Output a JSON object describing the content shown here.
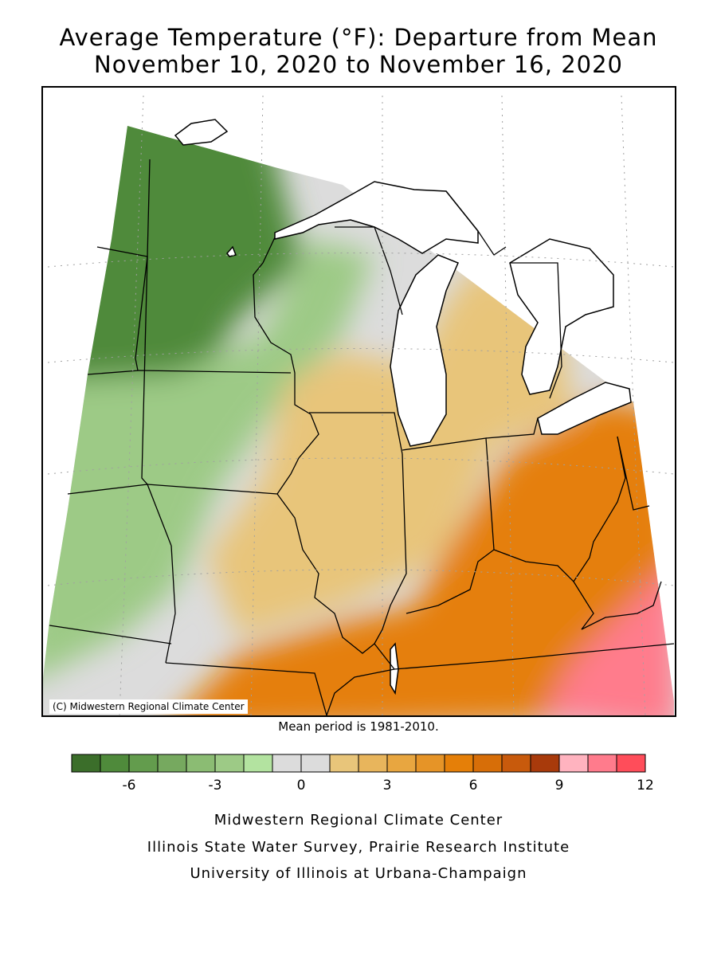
{
  "title": {
    "line1": "Average Temperature (°F): Departure from Mean",
    "line2": "November 10, 2020 to November 16, 2020"
  },
  "map": {
    "credit": "(C) Midwestern Regional Climate Center",
    "mean_period": "Mean period is 1981-2010.",
    "land_color": "#ffffff",
    "water_color": "#ffffff",
    "border_color": "#000000",
    "regions": [
      {
        "name": "northwest",
        "anomaly_range": [
          -8,
          -5
        ],
        "color": "#4f8a3b"
      },
      {
        "name": "west-central",
        "anomaly_range": [
          -4,
          -1
        ],
        "color": "#9dca86"
      },
      {
        "name": "central",
        "anomaly_range": [
          -1,
          1
        ],
        "color": "#dcdcdc"
      },
      {
        "name": "east-central",
        "anomaly_range": [
          1,
          4
        ],
        "color": "#e8c57a"
      },
      {
        "name": "southeast",
        "anomaly_range": [
          5,
          8
        ],
        "color": "#e57f08"
      },
      {
        "name": "far-southeast",
        "anomaly_range": [
          9,
          12
        ],
        "color": "#ff7b8c"
      }
    ]
  },
  "legend": {
    "colors": [
      "#3b6e2a",
      "#4f8a3b",
      "#639c4d",
      "#76a95f",
      "#8bbc73",
      "#9dca86",
      "#b3e3a0",
      "#dcdcdc",
      "#dcdcdc",
      "#e8c57a",
      "#e8b55c",
      "#e8a640",
      "#e69427",
      "#e57f08",
      "#d76e08",
      "#c85a0c",
      "#a83a0b",
      "#ffb3bf",
      "#ff7b8c",
      "#ff4d5a"
    ],
    "min": -8,
    "max": 12,
    "tick_values": [
      -6,
      -3,
      0,
      3,
      6,
      9,
      12
    ],
    "tick_labels": [
      "-6",
      "-3",
      "0",
      "3",
      "6",
      "9",
      "12"
    ]
  },
  "footer": {
    "line1": "Midwestern Regional Climate Center",
    "line2": "Illinois State Water Survey, Prairie Research Institute",
    "line3": "University of Illinois at Urbana-Champaign"
  }
}
